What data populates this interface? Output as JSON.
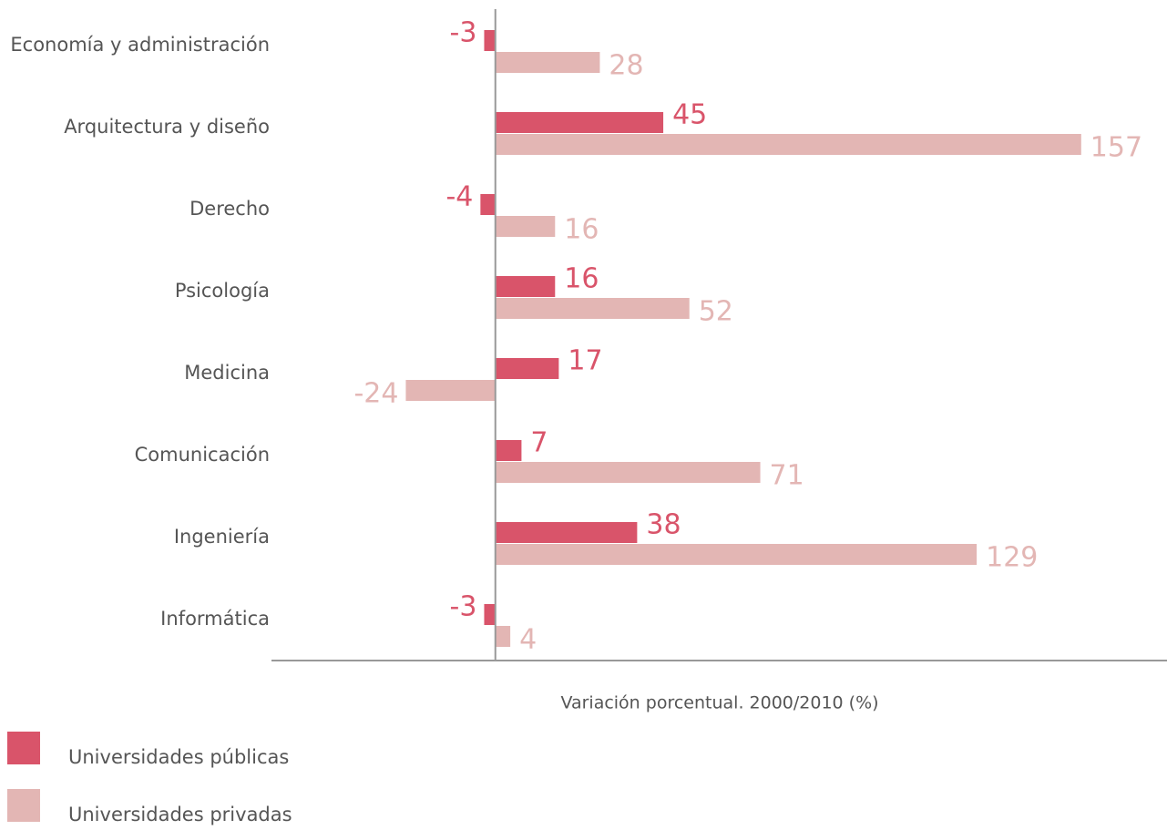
{
  "chart_data": {
    "type": "hbar",
    "categories": [
      "Economía y administración",
      "Arquitectura y diseño",
      "Derecho",
      "Psicología",
      "Medicina",
      "Comunicación",
      "Ingeniería",
      "Informática"
    ],
    "series": [
      {
        "name": "Universidades públicas",
        "color": "#d9546a",
        "values": [
          -3,
          45,
          -4,
          16,
          17,
          7,
          38,
          -3
        ]
      },
      {
        "name": "Universidades privadas",
        "color": "#e3b6b4",
        "values": [
          28,
          157,
          16,
          52,
          -24,
          71,
          129,
          4
        ]
      }
    ],
    "xlabel": "Variación porcentual. 2000/2010 (%)",
    "xlim": [
      -60,
      180
    ]
  }
}
